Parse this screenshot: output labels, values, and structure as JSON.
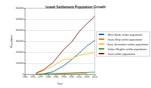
{
  "chart_data": {
    "type": "line",
    "title": "Israeli Settlement Population Growth",
    "x_label": "Year",
    "y_label": "Population",
    "x": [
      1972,
      1977,
      1983,
      1990,
      1995,
      2000,
      2005,
      2008,
      2010
    ],
    "series": [
      {
        "name": "West Bank settler population",
        "color": "#2060b0",
        "values": [
          1182,
          5023,
          22800,
          78600,
          133200,
          192900,
          258900,
          285800,
          311100
        ]
      },
      {
        "name": "Gaza Strip settler population",
        "color": "#e6771d",
        "values": [
          700,
          500,
          900,
          3000,
          5300,
          6678,
          8500,
          null,
          null
        ]
      },
      {
        "name": "East Jerusalem settler population",
        "color": "#f2c12e",
        "values": [
          8649,
          33300,
          76095,
          135000,
          140000,
          172250,
          184057,
          193700,
          198000
        ]
      },
      {
        "name": "Golan Heights settler population",
        "color": "#3a9a3a",
        "values": [
          77,
          3000,
          6800,
          10000,
          13400,
          15955,
          17000,
          18700,
          19000
        ]
      },
      {
        "name": "Total settler population",
        "color": "#8b1a1a",
        "values": [
          10608,
          41823,
          106595,
          226600,
          291900,
          387783,
          459957,
          498200,
          528100
        ]
      }
    ],
    "xlim": [
      1965,
      2010
    ],
    "xticks": [
      1965,
      1970,
      1975,
      1980,
      1985,
      1990,
      1995,
      2000,
      2005,
      2010
    ],
    "ylim": [
      0,
      600000
    ],
    "yticks": [
      0,
      100000,
      200000,
      300000,
      400000,
      500000,
      600000
    ],
    "grid": true,
    "legend": "right",
    "marker": "none"
  }
}
